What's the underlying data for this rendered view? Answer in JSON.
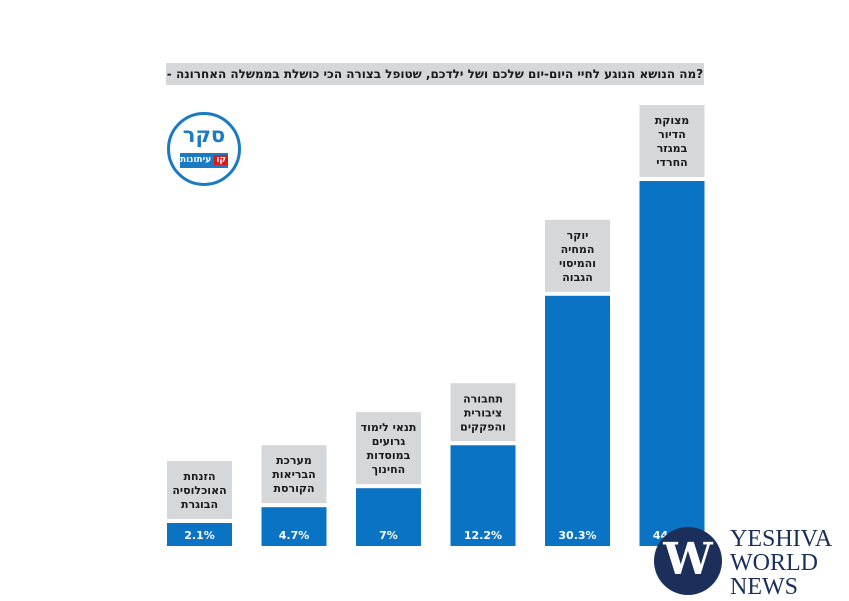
{
  "question": "- מה הנושא הנוגע לחיי היום-יום שלכם ושל ילדכם, שטופל בצורה הכי כושלת בממשלה האחרונה?",
  "logo": {
    "word": "סקר",
    "tag_red": "קו",
    "tag_rest": "עיתונות"
  },
  "colors": {
    "bar": "#0a73c4",
    "label_box": "#d6d7d8",
    "text": "#1a1a1a"
  },
  "chart_data": {
    "type": "bar",
    "categories": [
      [
        "הזנחת",
        "האוכלוסיה",
        "הבוגרת"
      ],
      [
        "מערכת",
        "הבריאות",
        "הקורסת"
      ],
      [
        "תנאי לימוד",
        "גרועים",
        "במוסדות",
        "החינוך"
      ],
      [
        "תחבורה",
        "ציבורית",
        "והפקקים"
      ],
      [
        "יוקר",
        "המחיה",
        "והמיסוי",
        "הגבוה"
      ],
      [
        "מצוקת",
        "הדיור",
        "במגזר",
        "החרדי"
      ]
    ],
    "values": [
      2.1,
      4.7,
      7,
      12.2,
      30.3,
      44.2
    ],
    "value_labels": [
      "2.1%",
      "4.7%",
      "7%",
      "12.2%",
      "30.3%",
      "44.2%"
    ],
    "ylim": [
      0,
      45
    ],
    "grid": false,
    "legend": "none"
  },
  "watermark": {
    "lines": [
      "YESHIVA",
      "WORLD",
      "NEWS"
    ],
    "mark": "W"
  }
}
